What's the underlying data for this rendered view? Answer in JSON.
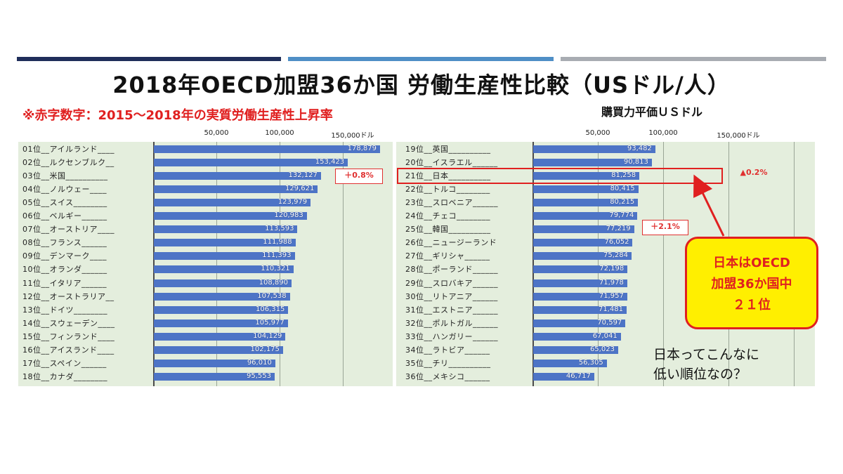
{
  "title": "2018年OECD加盟36か国 労働生産性比較（USドル/人）",
  "subtitle": "※赤字数字：2015〜2018年の実質労働生産性上昇率",
  "ppp_label": "購買力平価ＵＳドル",
  "colors": {
    "bar": "#4d74c6",
    "panel": "#e4eedd",
    "accent": "#e02020",
    "callout_bg": "#ffef00",
    "topbar_1": "#1f2e5a",
    "topbar_2": "#4f8fc6",
    "topbar_3": "#a8acb2"
  },
  "chart_data": {
    "type": "bar",
    "orientation": "horizontal",
    "title": "2018年OECD加盟36か国 労働生産性比較（USドル/人）",
    "x_ticks": [
      "50,000",
      "100,000",
      "150,000ドル"
    ],
    "xlim": [
      0,
      200000
    ],
    "grid": true,
    "categories": [
      "01位__アイルランド____",
      "02位__ルクセンブルク__",
      "03位__米国__________",
      "04位__ノルウェー____",
      "05位__スイス________",
      "06位__ベルギー______",
      "07位__オーストリア____",
      "08位__フランス______",
      "09位__デンマーク____",
      "10位__オランダ______",
      "11位__イタリア______",
      "12位__オーストラリア__",
      "13位__ドイツ________",
      "14位__スウェーデン____",
      "15位__フィンランド____",
      "16位__アイスランド____",
      "17位__スペイン______",
      "18位__カナダ________",
      "19位__英国__________",
      "20位__イスラエル______",
      "21位__日本__________",
      "22位__トルコ________",
      "23位__スロベニア______",
      "24位__チェコ________",
      "25位__韓国__________",
      "26位__ニュージーランド",
      "27位__ギリシャ______",
      "28位__ポーランド______",
      "29位__スロバキア______",
      "30位__リトアニア______",
      "31位__エストニア______",
      "32位__ポルトガル______",
      "33位__ハンガリー______",
      "34位__ラトビア______",
      "35位__チリ__________",
      "36位__メキシコ______"
    ],
    "values": [
      178879,
      153423,
      132127,
      129621,
      123979,
      120983,
      113593,
      111988,
      111393,
      110321,
      108890,
      107538,
      106315,
      105977,
      104129,
      102175,
      96010,
      95553,
      93482,
      90813,
      81258,
      80415,
      80215,
      79774,
      77219,
      76052,
      75284,
      72198,
      71978,
      71957,
      71481,
      70597,
      67041,
      65023,
      56305,
      46717
    ],
    "value_labels": [
      "178,879",
      "153,423",
      "132,127",
      "129,621",
      "123,979",
      "120,983",
      "113,593",
      "111,988",
      "111,393",
      "110,321",
      "108,890",
      "107,538",
      "106,315",
      "105,977",
      "104,129",
      "102,175",
      "96,010",
      "95,553",
      "93,482",
      "90,813",
      "81,258",
      "80,415",
      "80,215",
      "79,774",
      "77,219",
      "76,052",
      "75,284",
      "72,198",
      "71,978",
      "71,957",
      "71,481",
      "70,597",
      "67,041",
      "65,023",
      "56,305",
      "46,717"
    ],
    "annotations": [
      {
        "row": 2,
        "text": "＋0.8%"
      },
      {
        "row": 20,
        "text": "▲0.2%"
      },
      {
        "row": 24,
        "text": "＋2.1%"
      }
    ]
  },
  "callout": {
    "lines": [
      "日本はOECD",
      "加盟36か国中",
      "２１位"
    ]
  },
  "question": {
    "lines": [
      "日本ってこんなに",
      "低い順位なの？"
    ]
  }
}
